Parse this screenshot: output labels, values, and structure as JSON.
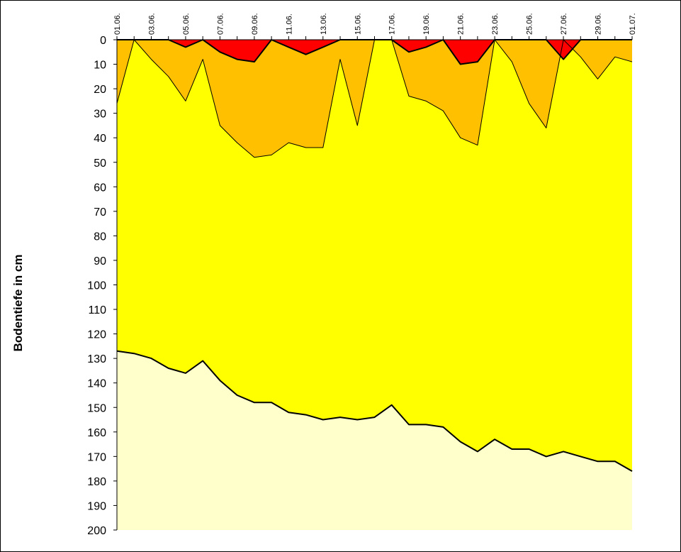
{
  "chart_data": {
    "type": "area",
    "title": "",
    "xlabel": "",
    "ylabel": "Bodentiefe in cm",
    "ylim": [
      0,
      200
    ],
    "y_inverted": true,
    "y_ticks": [
      0,
      10,
      20,
      30,
      40,
      50,
      60,
      70,
      80,
      90,
      100,
      110,
      120,
      130,
      140,
      150,
      160,
      170,
      180,
      190,
      200
    ],
    "x": [
      "01.06.",
      "02.06.",
      "03.06.",
      "04.06.",
      "05.06.",
      "06.06.",
      "07.06.",
      "08.06.",
      "09.06.",
      "10.06.",
      "11.06.",
      "12.06.",
      "13.06.",
      "14.06.",
      "15.06.",
      "16.06.",
      "17.06.",
      "18.06.",
      "19.06.",
      "20.06.",
      "21.06.",
      "22.06.",
      "23.06.",
      "24.06.",
      "25.06.",
      "26.06.",
      "27.06.",
      "28.06.",
      "29.06.",
      "30.06.",
      "01.07."
    ],
    "x_tick_labels": [
      "01.06.",
      "03.06.",
      "05.06.",
      "07.06.",
      "09.06.",
      "11.06.",
      "13.06.",
      "15.06.",
      "17.06.",
      "19.06.",
      "21.06.",
      "23.06.",
      "25.06.",
      "27.06.",
      "29.06.",
      "01.07."
    ],
    "series": [
      {
        "color": "#ff0000",
        "values": [
          0,
          0,
          0,
          0,
          3,
          0,
          5,
          8,
          9,
          0,
          3,
          6,
          3,
          0,
          0,
          0,
          0,
          5,
          3,
          0,
          10,
          9,
          0,
          0,
          0,
          0,
          8,
          0,
          0,
          0,
          0
        ]
      },
      {
        "color": "#ffc000",
        "values": [
          26,
          0,
          8,
          15,
          25,
          8,
          35,
          42,
          48,
          47,
          42,
          44,
          44,
          8,
          35,
          0,
          0,
          23,
          25,
          29,
          40,
          43,
          0,
          9,
          26,
          36,
          0,
          7,
          16,
          7,
          9
        ]
      },
      {
        "color": "#ffff00",
        "values": [
          127,
          128,
          130,
          134,
          136,
          131,
          139,
          145,
          148,
          148,
          152,
          153,
          155,
          154,
          155,
          154,
          149,
          157,
          157,
          158,
          164,
          168,
          163,
          167,
          167,
          170,
          168,
          170,
          172,
          172,
          176
        ]
      },
      {
        "color": "#ffffcc",
        "values": [
          200,
          200,
          200,
          200,
          200,
          200,
          200,
          200,
          200,
          200,
          200,
          200,
          200,
          200,
          200,
          200,
          200,
          200,
          200,
          200,
          200,
          200,
          200,
          200,
          200,
          200,
          200,
          200,
          200,
          200,
          200
        ]
      }
    ],
    "grid": false,
    "legend": "none"
  }
}
